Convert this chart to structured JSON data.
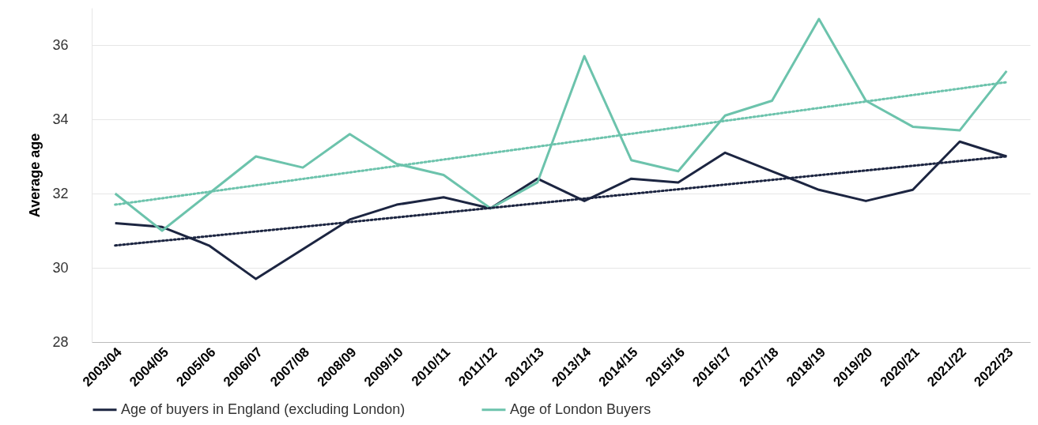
{
  "chart_data": {
    "type": "line",
    "ylabel": "Average age",
    "categories": [
      "2003/04",
      "2004/05",
      "2005/06",
      "2006/07",
      "2007/08",
      "2008/09",
      "2009/10",
      "2010/11",
      "2011/12",
      "2012/13",
      "2013/14",
      "2014/15",
      "2015/16",
      "2016/17",
      "2017/18",
      "2018/19",
      "2019/20",
      "2020/21",
      "2021/22",
      "2022/23"
    ],
    "series": [
      {
        "name": "Age of buyers in England (excluding London)",
        "color": "#1c2541",
        "values": [
          31.2,
          31.1,
          30.6,
          29.7,
          30.5,
          31.3,
          31.7,
          31.9,
          31.6,
          32.4,
          31.8,
          32.4,
          32.3,
          33.1,
          32.6,
          32.1,
          31.8,
          32.1,
          33.4,
          33.0
        ]
      },
      {
        "name": "Age of London Buyers",
        "color": "#6cc3ac",
        "values": [
          32.0,
          31.0,
          32.0,
          33.0,
          32.7,
          33.6,
          32.8,
          32.5,
          31.6,
          32.3,
          35.7,
          32.9,
          32.6,
          34.1,
          34.5,
          36.7,
          34.5,
          33.8,
          33.7,
          35.3
        ]
      },
      {
        "type": "line",
        "line_style": "dotted",
        "color": "#1c2541",
        "x": [
          "2003/04",
          "2022/23"
        ],
        "values": [
          30.6,
          33.0
        ]
      },
      {
        "type": "line",
        "line_style": "dotted",
        "color": "#6cc3ac",
        "x": [
          "2003/04",
          "2022/23"
        ],
        "values": [
          31.7,
          35.0
        ]
      }
    ],
    "ylim": [
      28,
      37
    ],
    "yticks": [
      28,
      30,
      32,
      34,
      36
    ],
    "grid": "y",
    "legend": "bottom",
    "line_style": "solid",
    "marker": "none"
  }
}
